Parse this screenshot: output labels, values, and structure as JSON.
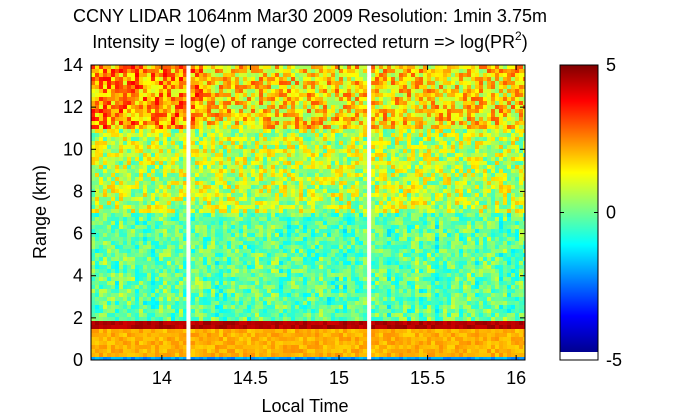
{
  "chart_data": {
    "type": "heatmap",
    "title": "CCNY LIDAR 1064nm Mar30 2009 Resolution: 1min 3.75m",
    "subtitle_main": "Intensity = log(e) of range corrected return => log(PR",
    "subtitle_sup": "2",
    "subtitle_close": ")",
    "xlabel": "Local Time",
    "ylabel": "Range (km)",
    "xlim": [
      13.6,
      16.05
    ],
    "ylim": [
      0,
      14
    ],
    "xticks": [
      14,
      14.5,
      15,
      15.5,
      16
    ],
    "xtick_labels": [
      "14",
      "14.5",
      "15",
      "15.5",
      "16"
    ],
    "yticks": [
      0,
      2,
      4,
      6,
      8,
      10,
      12,
      14
    ],
    "ytick_labels": [
      "0",
      "2",
      "4",
      "6",
      "8",
      "10",
      "12",
      "14"
    ],
    "colorbar": {
      "range": [
        -5,
        5
      ],
      "ticks": [
        -5,
        0,
        5
      ],
      "tick_labels": [
        "-5",
        "0",
        "5"
      ],
      "colormap": "jet"
    },
    "data_gaps_local_time": [
      14.15,
      15.17
    ],
    "layers": {
      "boundary_layer_top_km": 1.7,
      "boundary_layer_intensity": 4.5,
      "near_surface_intensity": 2.0,
      "free_troposphere_intensity": 0.0,
      "upper_intensity": 1.5
    }
  },
  "colors": {
    "axis": "#000000",
    "gap": "#ffffff"
  }
}
